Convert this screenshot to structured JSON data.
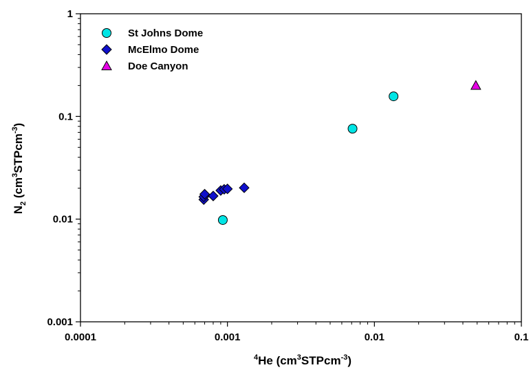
{
  "chart_data": {
    "type": "scatter",
    "xscale": "log",
    "yscale": "log",
    "xlim": [
      0.0001,
      0.1
    ],
    "ylim": [
      0.001,
      1
    ],
    "x_ticks": [
      "0.0001",
      "0.001",
      "0.01",
      "0.1"
    ],
    "y_ticks": [
      "0.001",
      "0.01",
      "0.1",
      "1"
    ],
    "xlabel": {
      "sup1": "4",
      "main": "He (cm",
      "sup2": "3",
      "mid": "STPcm",
      "sup3": "-3",
      "end": ")"
    },
    "ylabel": {
      "main": "N",
      "sub": "2",
      "mid": " (cm",
      "sup1": "3",
      "mid2": "STPcm",
      "sup2": "-3",
      "end": ")"
    },
    "grid": false,
    "legend_position": "top-left",
    "series": [
      {
        "name": "St Johns Dome",
        "marker": "circle",
        "color": "#00e5e5",
        "points": [
          [
            0.00093,
            0.0098
          ],
          [
            0.0071,
            0.076
          ],
          [
            0.0135,
            0.157
          ]
        ]
      },
      {
        "name": "McElmo Dome",
        "marker": "diamond",
        "color": "#1010cc",
        "points": [
          [
            0.00069,
            0.0155
          ],
          [
            0.00069,
            0.0165
          ],
          [
            0.0007,
            0.0175
          ],
          [
            0.0008,
            0.0168
          ],
          [
            0.0009,
            0.019
          ],
          [
            0.00095,
            0.0195
          ],
          [
            0.001,
            0.0197
          ],
          [
            0.0013,
            0.0202
          ]
        ]
      },
      {
        "name": "Doe Canyon",
        "marker": "triangle",
        "color": "#e500e5",
        "points": [
          [
            0.049,
            0.2
          ]
        ]
      }
    ]
  }
}
